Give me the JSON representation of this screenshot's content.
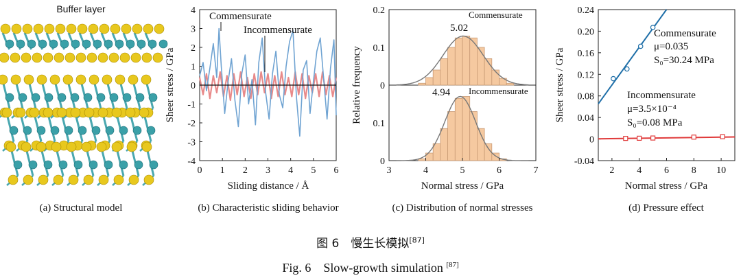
{
  "panel_a": {
    "buffer_label": "Buffer layer",
    "caption": "(a) Structural model",
    "colors": {
      "sulfur": "#e8c81e",
      "metal": "#3aa0a8",
      "bond": "#4aa8b0"
    }
  },
  "panel_b": {
    "caption": "(b) Characteristic sliding behavior"
  },
  "panel_c": {
    "caption": "(c) Distribution of normal stresses"
  },
  "panel_d": {
    "caption": "(d) Pressure effect"
  },
  "captions": {
    "cn": "图 6　慢生长模拟",
    "en": "Fig. 6　Slow-growth simulation ",
    "ref": "[87]"
  },
  "chart_data": [
    {
      "id": "sliding",
      "type": "line",
      "xlabel": "Sliding distance / Å",
      "ylabel": "Sheer stress / GPa",
      "xlim": [
        0,
        6
      ],
      "ylim": [
        -4,
        4
      ],
      "xticks": [
        0,
        1,
        2,
        3,
        4,
        5,
        6
      ],
      "yticks": [
        -4,
        -3,
        -2,
        -1,
        0,
        1,
        2,
        3,
        4
      ],
      "annotations": [
        "Commensurate",
        "Incommensurate"
      ],
      "series": [
        {
          "name": "Commensurate",
          "color": "#6fa3d2",
          "x": [
            0,
            0.15,
            0.3,
            0.45,
            0.6,
            0.75,
            0.85,
            0.95,
            1.1,
            1.25,
            1.4,
            1.55,
            1.7,
            1.85,
            2.0,
            2.15,
            2.3,
            2.45,
            2.6,
            2.75,
            2.9,
            3.05,
            3.2,
            3.35,
            3.5,
            3.65,
            3.8,
            3.95,
            4.1,
            4.25,
            4.4,
            4.55,
            4.7,
            4.85,
            5.0,
            5.15,
            5.3,
            5.45,
            5.6,
            5.75,
            5.9,
            6.0
          ],
          "y": [
            0.5,
            1.2,
            -0.3,
            0.9,
            2.2,
            0.4,
            3.0,
            1.0,
            -1.5,
            0.2,
            1.4,
            -0.8,
            -2.2,
            0.6,
            1.6,
            -1.0,
            0.3,
            -2.1,
            1.2,
            2.5,
            -0.4,
            -1.8,
            0.6,
            1.8,
            -0.5,
            -1.2,
            1.0,
            2.3,
            2.9,
            -0.6,
            -2.7,
            0.8,
            1.3,
            -1.5,
            0.2,
            1.8,
            2.5,
            0.3,
            -1.8,
            0.9,
            2.4,
            -1.6
          ]
        },
        {
          "name": "Incommensurate",
          "color": "#e88a8a",
          "x": [
            0,
            0.15,
            0.3,
            0.45,
            0.6,
            0.75,
            0.9,
            1.05,
            1.2,
            1.35,
            1.5,
            1.65,
            1.8,
            1.95,
            2.1,
            2.25,
            2.4,
            2.55,
            2.7,
            2.85,
            3.0,
            3.15,
            3.3,
            3.45,
            3.6,
            3.75,
            3.9,
            4.05,
            4.2,
            4.35,
            4.5,
            4.65,
            4.8,
            4.95,
            5.1,
            5.25,
            5.4,
            5.55,
            5.7,
            5.85,
            6.0
          ],
          "y": [
            0.4,
            -0.5,
            0.6,
            -0.7,
            0.5,
            -0.4,
            0.7,
            -0.6,
            0.5,
            -0.8,
            0.6,
            -0.5,
            0.7,
            -0.6,
            0.4,
            -0.7,
            0.6,
            -0.5,
            0.7,
            -0.4,
            0.6,
            -0.7,
            0.5,
            -0.6,
            0.7,
            -0.5,
            0.4,
            -0.6,
            0.7,
            -0.5,
            0.6,
            -0.7,
            0.5,
            -0.4,
            0.6,
            -0.6,
            0.7,
            -0.5,
            0.5,
            -0.6,
            0.4
          ]
        }
      ]
    },
    {
      "id": "dist_comm",
      "type": "bar",
      "annotation": "Commensurate",
      "peak_label": "5.02",
      "xlim": [
        3,
        7
      ],
      "ylim": [
        0,
        0.2
      ],
      "yticks": [
        0,
        0.1,
        0.2
      ],
      "bin_width": 0.2,
      "bins": [
        3.8,
        4.0,
        4.2,
        4.4,
        4.6,
        4.8,
        5.0,
        5.2,
        5.4,
        5.6,
        5.8,
        6.0,
        6.2
      ],
      "values": [
        0.005,
        0.02,
        0.04,
        0.07,
        0.1,
        0.125,
        0.13,
        0.125,
        0.1,
        0.07,
        0.04,
        0.018,
        0.005
      ],
      "fit": {
        "mean": 5.02,
        "sd": 0.55,
        "peak": 0.13
      }
    },
    {
      "id": "dist_incomm",
      "type": "bar",
      "annotation": "Incommensurate",
      "peak_label": "4.94",
      "xlabel": "Normal stress / GPa",
      "ylabel": "Relative frequency",
      "xlim": [
        3,
        7
      ],
      "ylim": [
        0,
        0.2
      ],
      "xticks": [
        3,
        4,
        5,
        6,
        7
      ],
      "yticks": [
        0,
        0.1
      ],
      "bin_width": 0.2,
      "bins": [
        3.8,
        4.0,
        4.2,
        4.4,
        4.6,
        4.8,
        5.0,
        5.2,
        5.4,
        5.6,
        5.8,
        6.0
      ],
      "values": [
        0.005,
        0.02,
        0.045,
        0.085,
        0.13,
        0.165,
        0.17,
        0.13,
        0.085,
        0.045,
        0.02,
        0.005
      ],
      "fit": {
        "mean": 4.94,
        "sd": 0.42,
        "peak": 0.17
      }
    },
    {
      "id": "pressure",
      "type": "scatter",
      "xlabel": "Normal stress / GPa",
      "ylabel": "Sheer stress / GPa",
      "xlim": [
        1,
        11
      ],
      "ylim": [
        -0.04,
        0.24
      ],
      "xticks": [
        2,
        4,
        6,
        8,
        10
      ],
      "yticks": [
        -0.04,
        0,
        0.04,
        0.08,
        0.12,
        0.16,
        0.2,
        0.24
      ],
      "series": [
        {
          "name": "Commensurate",
          "color": "#1f6fa8",
          "marker": "circle",
          "x": [
            2.1,
            3.1,
            4.1,
            5.0
          ],
          "y": [
            0.112,
            0.13,
            0.172,
            0.207
          ],
          "fit": {
            "slope": 0.035,
            "intercept": 0.03024
          },
          "labels": [
            "Commensurate",
            "μ=0.035",
            "S₀=30.24 MPa"
          ]
        },
        {
          "name": "Incommensurate",
          "color": "#e03a3a",
          "marker": "square",
          "x": [
            3.0,
            4.0,
            5.0,
            8.0,
            10.1
          ],
          "y": [
            0.0012,
            0.0015,
            0.0019,
            0.0036,
            0.0044
          ],
          "fit": {
            "slope": 0.00035,
            "intercept": 8e-05
          },
          "labels": [
            "Incommensurate",
            "μ=3.5×10⁻⁴",
            "S₀=0.08 MPa"
          ]
        }
      ]
    }
  ]
}
